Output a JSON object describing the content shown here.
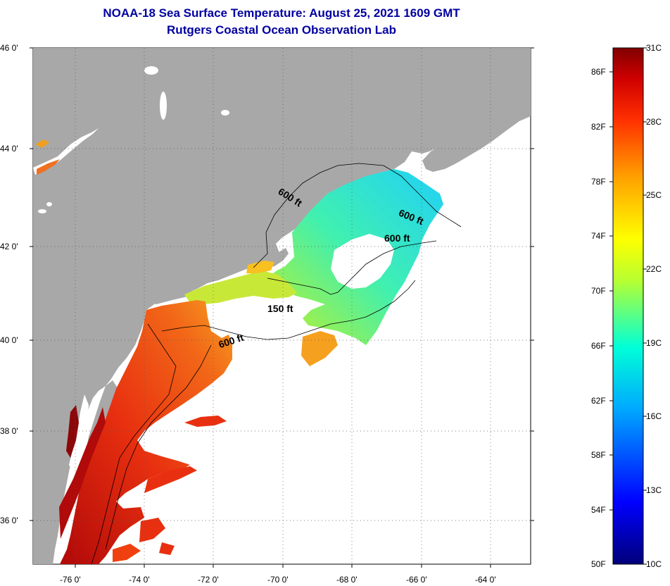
{
  "title": {
    "line1": "NOAA-18 Sea Surface Temperature:  August 25, 2021 1609 GMT",
    "line2": "Rutgers Coastal Ocean Observation Lab"
  },
  "latitude_labels": [
    "46 0'",
    "44 0'",
    "42 0'",
    "40 0'",
    "38 0'",
    "36 0'"
  ],
  "longitude_labels": [
    "-76 0'",
    "-74 0'",
    "-72 0'",
    "-70 0'",
    "-68 0'",
    "-66 0'",
    "-64 0'"
  ],
  "contour_labels": {
    "c600_gulf": "600 ft",
    "c600_georges_n": "600 ft",
    "c600_georges_s": "600 ft",
    "c150": "150 ft",
    "c600_shelf": "600 ft"
  },
  "colorbar": {
    "fahrenheit": [
      "86F",
      "82F",
      "78F",
      "74F",
      "70F",
      "66F",
      "62F",
      "58F",
      "54F",
      "50F"
    ],
    "celsius": [
      "31C",
      "28C",
      "25C",
      "22C",
      "19C",
      "16C",
      "13C",
      "10C"
    ],
    "range_celsius": [
      10,
      31
    ]
  },
  "colors": {
    "land": "#a8a8a8",
    "title": "#0000a0",
    "warm": "#e42a0c",
    "hot": "#a00a0a"
  }
}
